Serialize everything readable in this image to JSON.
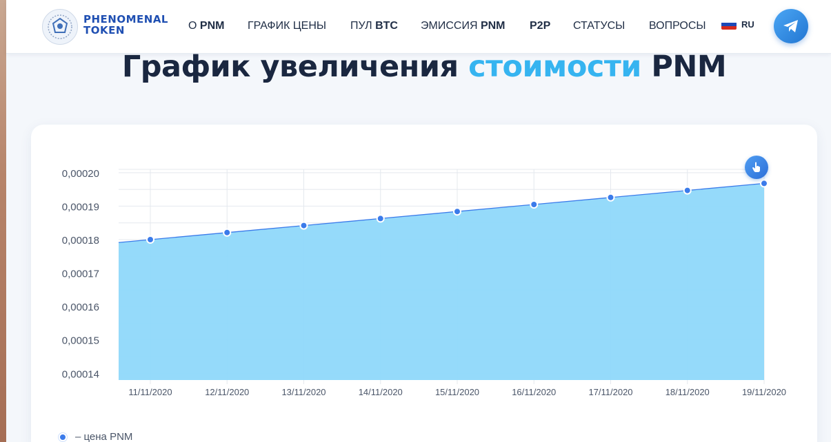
{
  "header": {
    "logo_line1": "PHENOMENAL",
    "logo_line2": "TOKEN",
    "nav": [
      {
        "pre": "О ",
        "bold": "PNM"
      },
      {
        "pre": "ГРАФИК ЦЕНЫ",
        "bold": ""
      },
      {
        "pre": "ПУЛ ",
        "bold": "BTC"
      },
      {
        "pre": "ЭМИССИЯ ",
        "bold": "PNM"
      },
      {
        "pre": "",
        "bold": "P2P"
      },
      {
        "pre": "СТАТУСЫ",
        "bold": ""
      },
      {
        "pre": "ВОПРОСЫ",
        "bold": ""
      }
    ],
    "lang": "RU",
    "telegram_icon": "telegram-icon"
  },
  "page": {
    "title_part1": "График увеличения ",
    "title_accent": "стоимости",
    "title_part2": " PNM"
  },
  "colors": {
    "accent": "#36b4f0",
    "line": "#3b7bea",
    "area": "#8fd8fa"
  },
  "chart_data": {
    "type": "area",
    "x": [
      "11/11/2020",
      "12/11/2020",
      "13/11/2020",
      "14/11/2020",
      "15/11/2020",
      "16/11/2020",
      "17/11/2020",
      "18/11/2020",
      "19/11/2020"
    ],
    "series": [
      {
        "name": "цена PNM",
        "values": [
          0.00018,
          0.0001821,
          0.0001842,
          0.0001863,
          0.0001884,
          0.0001905,
          0.0001926,
          0.0001947,
          0.0001968
        ]
      }
    ],
    "yticks": [
      "0,00020",
      "0,00019",
      "0,00018",
      "0,00017",
      "0,00016",
      "0,00015",
      "0,00014"
    ],
    "ylim": [
      0.000138,
      0.000201
    ],
    "grid": true,
    "legend": "bottom-left"
  },
  "legend": {
    "label": "– цена PNM"
  }
}
